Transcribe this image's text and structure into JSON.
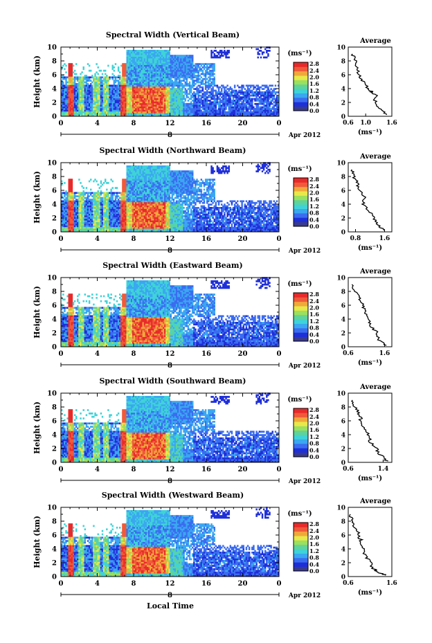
{
  "figure": {
    "xlabel": "Local Time",
    "date_label": "Apr 2012",
    "day_label": "8",
    "colors": {
      "scale": [
        "#3a3a8c",
        "#1f2fd8",
        "#3a6cf0",
        "#3aa7f0",
        "#3fd3d8",
        "#5fd39a",
        "#9be05f",
        "#e8e84a",
        "#f0a83a",
        "#f05a3a",
        "#e82a2a"
      ]
    }
  },
  "chart_data": [
    {
      "type": "heatmap",
      "title": "Spectral Width (Vertical Beam)",
      "ylabel": "Height (km)",
      "x_ticks": [
        "0",
        "4",
        "8",
        "12",
        "16",
        "20",
        "0"
      ],
      "y_ticks": [
        "0",
        "2",
        "4",
        "6",
        "8",
        "10"
      ],
      "xlim": [
        0,
        24
      ],
      "ylim": [
        0,
        10
      ],
      "colorbar_label": "(ms⁻¹)",
      "colorbar_ticks": [
        "0.0",
        "0.4",
        "0.8",
        "1.2",
        "1.6",
        "2.0",
        "2.4",
        "2.8"
      ],
      "average_title": "Average",
      "average_xlabel": "(ms⁻¹)",
      "average_xticks": [
        "0.6",
        "1.0",
        "1.6"
      ],
      "average_xlim": [
        0.6,
        1.6
      ],
      "average_profile": {
        "height": [
          0.2,
          1,
          2,
          3,
          3.5,
          4,
          5,
          6,
          7,
          8,
          9
        ],
        "width": [
          1.5,
          1.35,
          1.2,
          1.25,
          1.15,
          1.05,
          0.95,
          0.85,
          0.8,
          0.78,
          0.7
        ]
      }
    },
    {
      "type": "heatmap",
      "title": "Spectral Width (Northward Beam)",
      "ylabel": "Height (km)",
      "x_ticks": [
        "0",
        "4",
        "8",
        "12",
        "16",
        "20",
        "0"
      ],
      "y_ticks": [
        "0",
        "2",
        "4",
        "6",
        "8",
        "10"
      ],
      "xlim": [
        0,
        24
      ],
      "ylim": [
        0,
        10
      ],
      "colorbar_label": "(ms⁻¹)",
      "colorbar_ticks": [
        "0.0",
        "0.4",
        "0.8",
        "1.2",
        "1.6",
        "2.0",
        "2.4",
        "2.8"
      ],
      "average_title": "Average",
      "average_xlabel": "(ms⁻¹)",
      "average_xticks": [
        "0.8",
        "1.6"
      ],
      "average_xlim": [
        0.6,
        1.8
      ],
      "average_profile": {
        "height": [
          0.2,
          1,
          2,
          3,
          4,
          5,
          6,
          7,
          8,
          9
        ],
        "width": [
          1.6,
          1.4,
          1.3,
          1.2,
          1.0,
          1.05,
          0.9,
          0.85,
          0.75,
          0.7
        ]
      }
    },
    {
      "type": "heatmap",
      "title": "Spectral Width (Eastward Beam)",
      "ylabel": "Height (km)",
      "x_ticks": [
        "0",
        "4",
        "8",
        "12",
        "16",
        "20",
        "0"
      ],
      "y_ticks": [
        "0",
        "2",
        "4",
        "6",
        "8",
        "10"
      ],
      "xlim": [
        0,
        24
      ],
      "ylim": [
        0,
        10
      ],
      "colorbar_label": "(ms⁻¹)",
      "colorbar_ticks": [
        "0.0",
        "0.4",
        "0.8",
        "1.2",
        "1.6",
        "2.0",
        "2.4",
        "2.8"
      ],
      "average_title": "Average",
      "average_xlabel": "(ms⁻¹)",
      "average_xticks": [
        "0.6",
        "1.6"
      ],
      "average_xlim": [
        0.6,
        1.8
      ],
      "average_profile": {
        "height": [
          0.2,
          1,
          2,
          3,
          4,
          5,
          6,
          7,
          8,
          9
        ],
        "width": [
          1.65,
          1.45,
          1.4,
          1.2,
          1.15,
          1.05,
          1.0,
          0.9,
          0.8,
          0.7
        ]
      }
    },
    {
      "type": "heatmap",
      "title": "Spectral Width (Southward Beam)",
      "ylabel": "Height (km)",
      "x_ticks": [
        "0",
        "4",
        "8",
        "12",
        "16",
        "20",
        "0"
      ],
      "y_ticks": [
        "0",
        "2",
        "4",
        "6",
        "8",
        "10"
      ],
      "xlim": [
        0,
        24
      ],
      "ylim": [
        0,
        10
      ],
      "colorbar_label": "(ms⁻¹)",
      "colorbar_ticks": [
        "0.0",
        "0.4",
        "0.8",
        "1.2",
        "1.6",
        "2.0",
        "2.4",
        "2.8"
      ],
      "average_title": "Average",
      "average_xlabel": "(ms⁻¹)",
      "average_xticks": [
        "0.6",
        "1.4"
      ],
      "average_xlim": [
        0.6,
        1.6
      ],
      "average_profile": {
        "height": [
          0.2,
          1,
          2,
          3,
          4,
          5,
          6,
          7,
          8,
          9
        ],
        "width": [
          1.5,
          1.35,
          1.25,
          1.1,
          1.05,
          0.95,
          0.9,
          0.85,
          0.75,
          0.7
        ]
      }
    },
    {
      "type": "heatmap",
      "title": "Spectral Width (Westward Beam)",
      "ylabel": "Height (km)",
      "x_ticks": [
        "0",
        "4",
        "8",
        "12",
        "16",
        "20",
        "0"
      ],
      "y_ticks": [
        "0",
        "2",
        "4",
        "6",
        "8",
        "10"
      ],
      "xlim": [
        0,
        24
      ],
      "ylim": [
        0,
        10
      ],
      "colorbar_label": "(ms⁻¹)",
      "colorbar_ticks": [
        "0.0",
        "0.4",
        "0.8",
        "1.2",
        "1.6",
        "2.0",
        "2.4",
        "2.8"
      ],
      "average_title": "Average",
      "average_xlabel": "(ms⁻¹)",
      "average_xticks": [
        "0.6",
        "1.6"
      ],
      "average_xlim": [
        0.6,
        1.6
      ],
      "average_profile": {
        "height": [
          0.2,
          0.6,
          1,
          2,
          3,
          4,
          5,
          6,
          7,
          8,
          9
        ],
        "width": [
          1.45,
          1.3,
          1.2,
          1.1,
          1.0,
          0.95,
          0.9,
          0.85,
          0.75,
          0.7,
          0.65
        ]
      }
    }
  ]
}
